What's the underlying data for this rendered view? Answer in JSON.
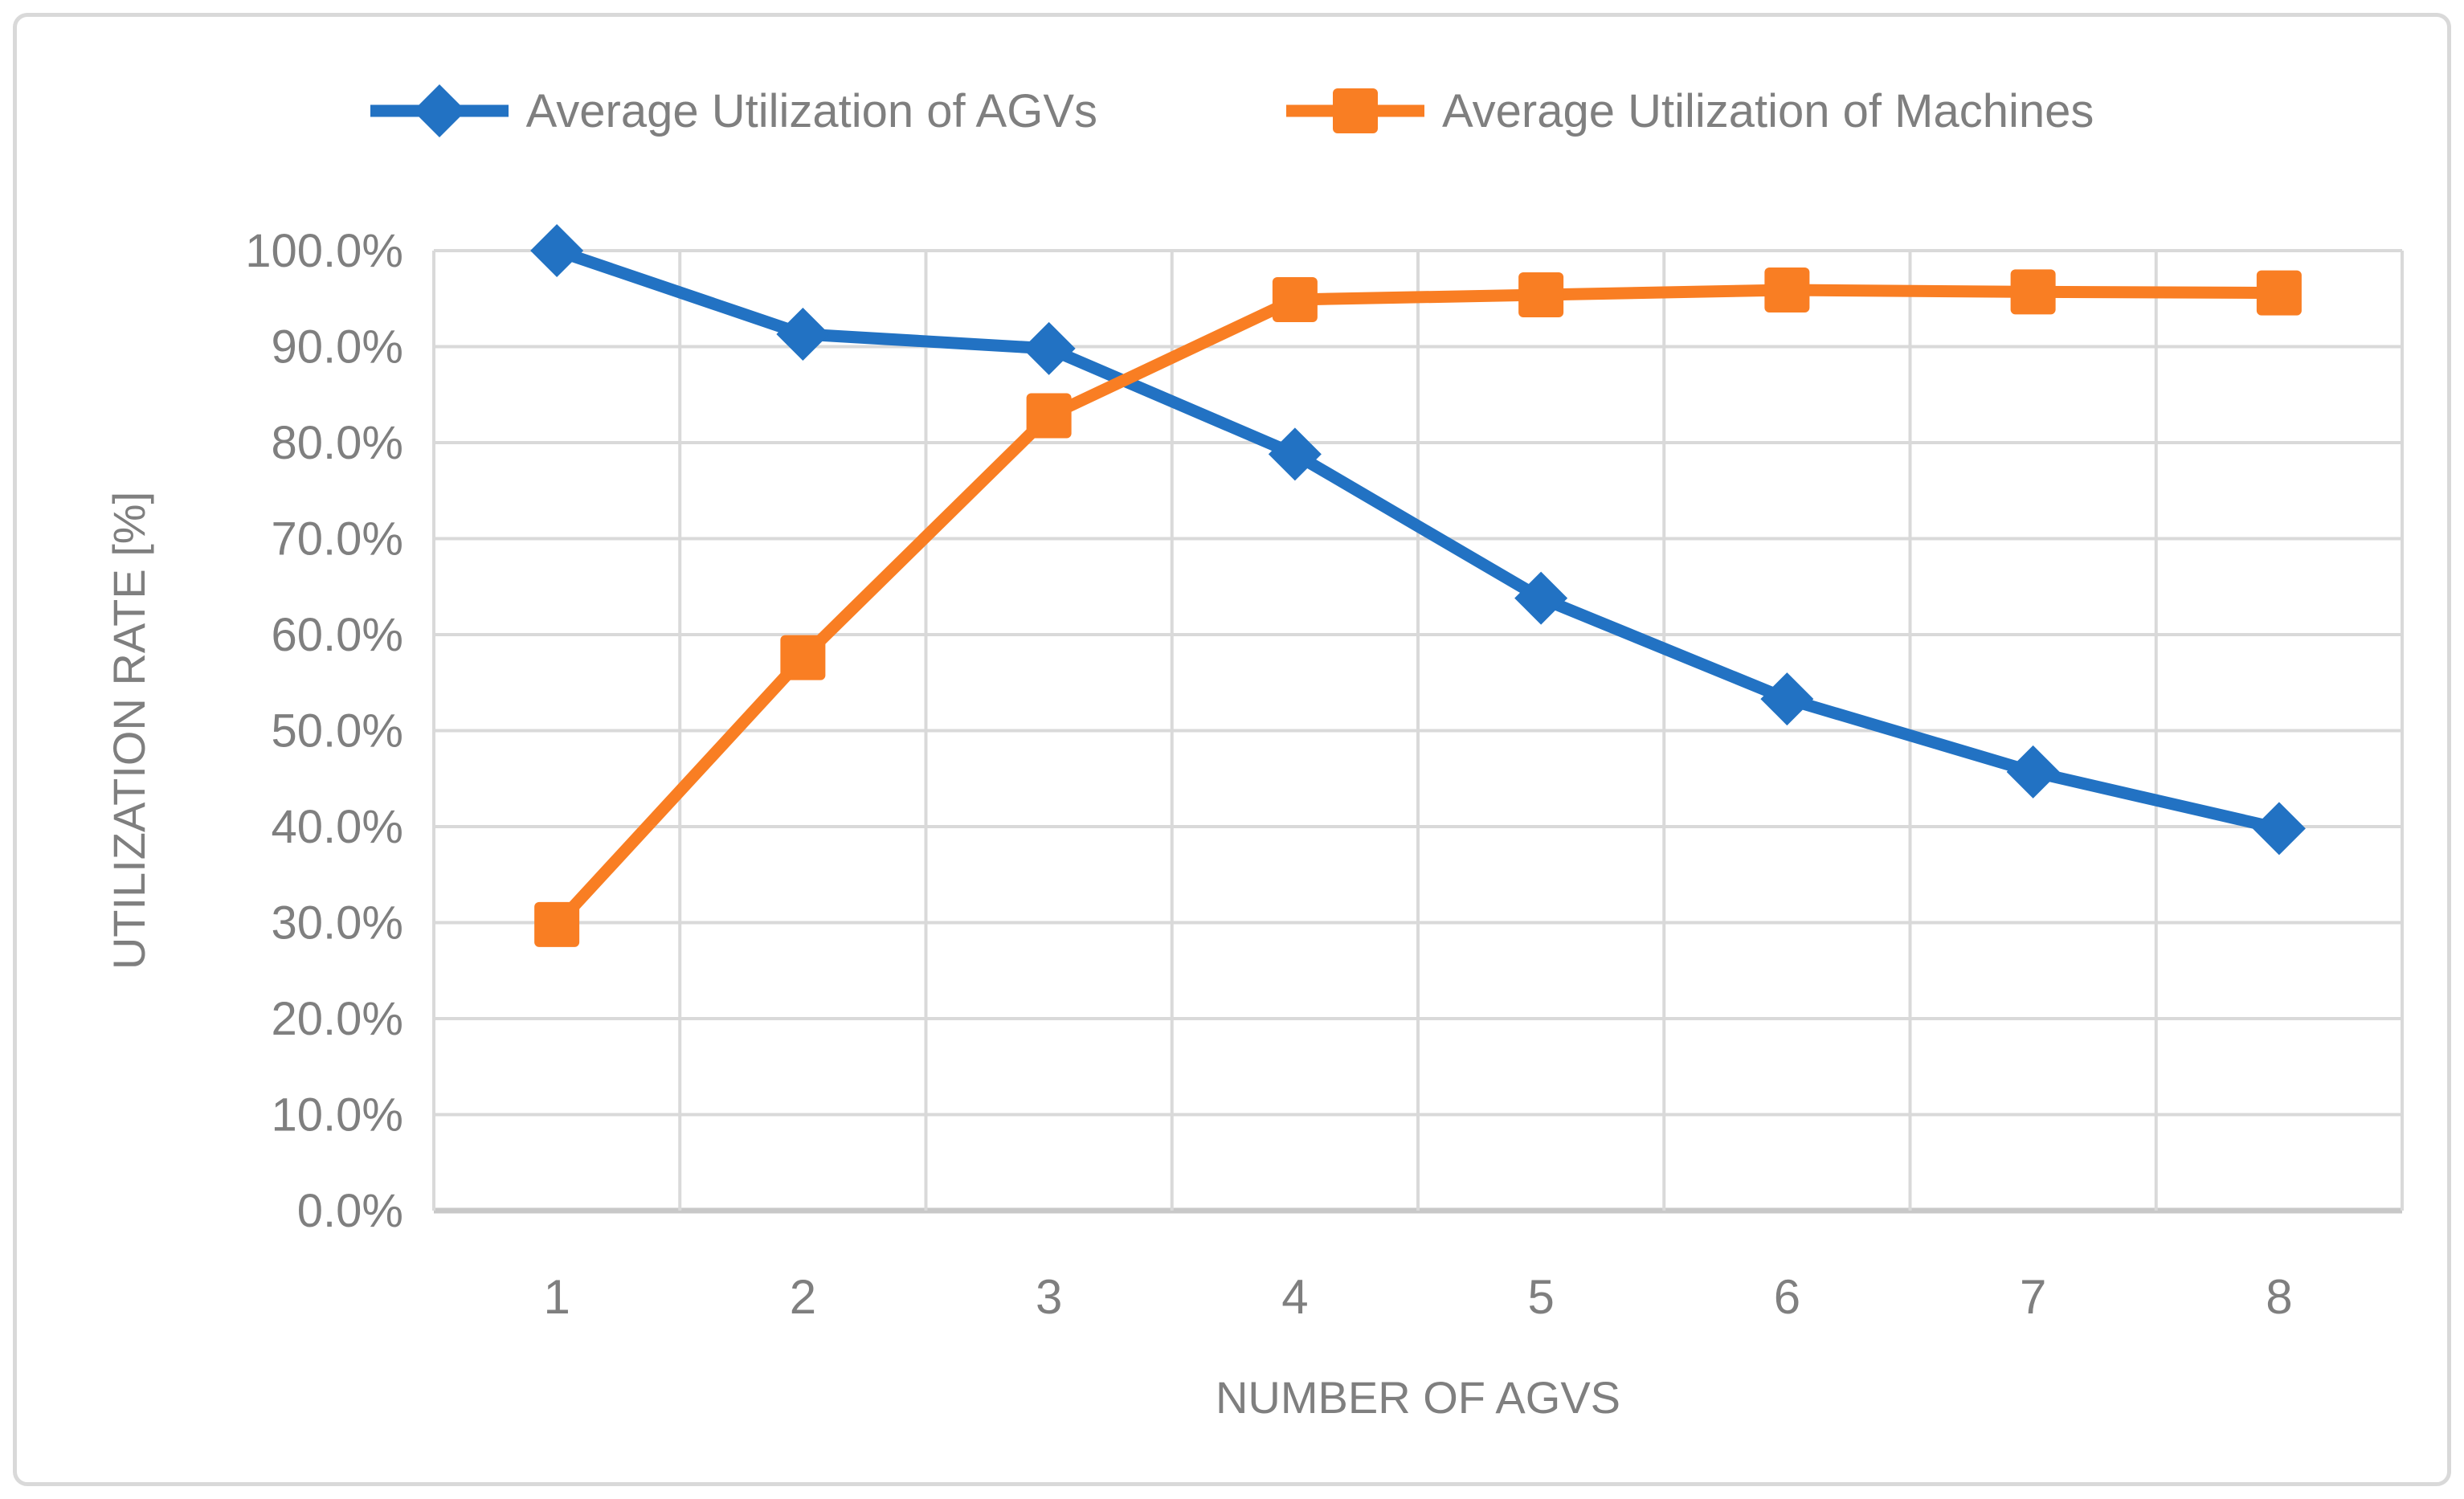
{
  "figure": {
    "background": "#ffffff",
    "border_color": "#d9d9d9"
  },
  "legend": {
    "position": "top",
    "text_color": "#7f7f7f",
    "items": [
      {
        "label": "Average Utilization of AGVs",
        "color": "#2272c3",
        "marker": "diamond"
      },
      {
        "label": "Average Utilization of Machines",
        "color": "#f97e23",
        "marker": "square"
      }
    ]
  },
  "chart_data": {
    "type": "line",
    "title": "",
    "categories": [
      "1",
      "2",
      "3",
      "4",
      "5",
      "6",
      "7",
      "8"
    ],
    "series": [
      {
        "name": "Average Utilization of AGVs",
        "color": "#2272c3",
        "marker": "diamond",
        "values": [
          100.0,
          91.3,
          89.8,
          78.8,
          63.8,
          53.3,
          45.7,
          39.8
        ]
      },
      {
        "name": "Average Utilization of Machines",
        "color": "#f97e23",
        "marker": "square",
        "values": [
          29.8,
          57.6,
          82.8,
          94.9,
          95.4,
          95.9,
          95.7,
          95.6
        ]
      }
    ],
    "xlabel": "NUMBER OF AGVS",
    "ylabel": "UTILIZATION RATE [%]",
    "ylim": [
      0,
      100
    ],
    "ytick_step": 10,
    "yticks": [
      "0.0%",
      "10.0%",
      "20.0%",
      "30.0%",
      "40.0%",
      "50.0%",
      "60.0%",
      "70.0%",
      "80.0%",
      "90.0%",
      "100.0%"
    ],
    "xticks": [
      "1",
      "2",
      "3",
      "4",
      "5",
      "6",
      "7",
      "8"
    ],
    "grid": true,
    "legend_position": "top",
    "gridline_color": "#d9d9d9",
    "axis_line_color": "#c8c8c8",
    "axis_text_color": "#7f7f7f",
    "line_width": 15,
    "marker_size": 56
  }
}
